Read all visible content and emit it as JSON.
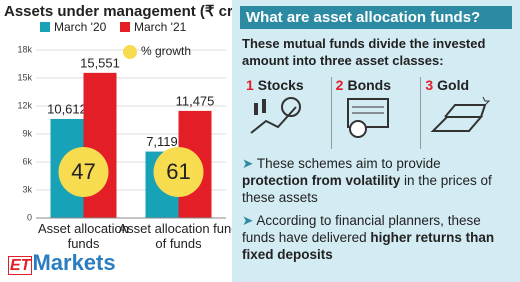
{
  "chart_data": {
    "type": "bar",
    "title": "Assets under management (₹ cr)",
    "categories": [
      "Asset allocation funds",
      "Asset allocation fund of funds"
    ],
    "series": [
      {
        "name": "March '20",
        "color": "#17a2b8",
        "values": [
          10612,
          7119
        ],
        "value_labels": [
          "10,612",
          "7,119"
        ]
      },
      {
        "name": "March '21",
        "color": "#e31e26",
        "values": [
          15551,
          11475
        ],
        "value_labels": [
          "15,551",
          "11,475"
        ]
      }
    ],
    "growth": {
      "name": "% growth",
      "color": "#f6dc4e",
      "values": [
        47,
        61
      ]
    },
    "ylim": [
      0,
      18000
    ],
    "yticks": [
      0,
      {
        "value": 3000,
        "label": "3k"
      },
      {
        "value": 6000,
        "label": "6k"
      },
      {
        "value": 9000,
        "label": "9k"
      },
      {
        "value": 12000,
        "label": "12k"
      },
      {
        "value": 15000,
        "label": "15k"
      },
      {
        "value": 18000,
        "label": "18k"
      }
    ],
    "grid": true
  },
  "panel": {
    "title": "What are asset allocation funds?",
    "intro": "These mutual funds divide the invested amount into three asset classes:",
    "classes": [
      {
        "number": "1",
        "label": "Stocks"
      },
      {
        "number": "2",
        "label": "Bonds"
      },
      {
        "number": "3",
        "label": "Gold"
      }
    ],
    "points": [
      [
        "These schemes aim to provide ",
        "protection from volatility",
        " in the prices of these assets"
      ],
      [
        "According to financial planners, these funds have delivered ",
        "higher returns than fixed deposits",
        ""
      ]
    ]
  },
  "logo": {
    "prefix": "ET",
    "name": "Markets"
  }
}
